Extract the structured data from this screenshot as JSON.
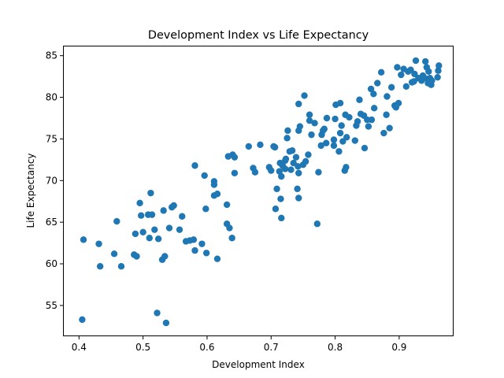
{
  "chart_data": {
    "type": "scatter",
    "title": "Development Index vs Life Expectancy",
    "xlabel": "Development Index",
    "ylabel": "Life Expectancy",
    "xlim": [
      0.375,
      0.985
    ],
    "ylim": [
      51.3,
      86.2
    ],
    "xticks": [
      0.4,
      0.5,
      0.6,
      0.7,
      0.8,
      0.9
    ],
    "xtick_labels": [
      "0.4",
      "0.5",
      "0.6",
      "0.7",
      "0.8",
      "0.9"
    ],
    "yticks": [
      55,
      60,
      65,
      70,
      75,
      80,
      85
    ],
    "ytick_labels": [
      "55",
      "60",
      "65",
      "70",
      "75",
      "80",
      "85"
    ],
    "grid": false,
    "color": "#1f77b4",
    "series": [
      {
        "points": [
          [
            0.405,
            53.3
          ],
          [
            0.407,
            62.9
          ],
          [
            0.431,
            62.4
          ],
          [
            0.433,
            59.7
          ],
          [
            0.455,
            61.2
          ],
          [
            0.459,
            65.1
          ],
          [
            0.466,
            59.7
          ],
          [
            0.486,
            61.1
          ],
          [
            0.488,
            63.6
          ],
          [
            0.49,
            60.9
          ],
          [
            0.495,
            67.3
          ],
          [
            0.497,
            65.8
          ],
          [
            0.5,
            63.8
          ],
          [
            0.508,
            65.9
          ],
          [
            0.51,
            63.1
          ],
          [
            0.512,
            68.5
          ],
          [
            0.514,
            65.9
          ],
          [
            0.518,
            64.1
          ],
          [
            0.522,
            54.1
          ],
          [
            0.524,
            63.0
          ],
          [
            0.53,
            60.5
          ],
          [
            0.532,
            66.4
          ],
          [
            0.534,
            60.9
          ],
          [
            0.536,
            52.9
          ],
          [
            0.541,
            64.3
          ],
          [
            0.545,
            66.8
          ],
          [
            0.548,
            67.0
          ],
          [
            0.557,
            64.1
          ],
          [
            0.561,
            65.7
          ],
          [
            0.567,
            62.7
          ],
          [
            0.573,
            62.8
          ],
          [
            0.579,
            62.9
          ],
          [
            0.581,
            61.6
          ],
          [
            0.581,
            71.8
          ],
          [
            0.592,
            62.4
          ],
          [
            0.596,
            70.6
          ],
          [
            0.598,
            66.6
          ],
          [
            0.599,
            61.3
          ],
          [
            0.611,
            69.9
          ],
          [
            0.611,
            69.5
          ],
          [
            0.611,
            68.2
          ],
          [
            0.616,
            68.4
          ],
          [
            0.616,
            60.6
          ],
          [
            0.631,
            64.8
          ],
          [
            0.631,
            67.1
          ],
          [
            0.633,
            72.9
          ],
          [
            0.635,
            64.3
          ],
          [
            0.639,
            63.1
          ],
          [
            0.64,
            73.1
          ],
          [
            0.643,
            72.8
          ],
          [
            0.643,
            70.9
          ],
          [
            0.665,
            74.1
          ],
          [
            0.672,
            71.5
          ],
          [
            0.675,
            71.0
          ],
          [
            0.683,
            74.3
          ],
          [
            0.697,
            71.6
          ],
          [
            0.7,
            71.2
          ],
          [
            0.704,
            74.1
          ],
          [
            0.706,
            74.0
          ],
          [
            0.707,
            66.6
          ],
          [
            0.709,
            69.0
          ],
          [
            0.713,
            71.1
          ],
          [
            0.714,
            72.1
          ],
          [
            0.715,
            67.8
          ],
          [
            0.716,
            65.5
          ],
          [
            0.716,
            70.5
          ],
          [
            0.718,
            71.8
          ],
          [
            0.722,
            72.4
          ],
          [
            0.722,
            71.4
          ],
          [
            0.723,
            72.6
          ],
          [
            0.725,
            75.1
          ],
          [
            0.726,
            76.0
          ],
          [
            0.729,
            73.5
          ],
          [
            0.731,
            71.3
          ],
          [
            0.733,
            73.6
          ],
          [
            0.735,
            72.1
          ],
          [
            0.739,
            72.8
          ],
          [
            0.741,
            69.0
          ],
          [
            0.742,
            71.7
          ],
          [
            0.743,
            67.9
          ],
          [
            0.743,
            79.2
          ],
          [
            0.743,
            76.0
          ],
          [
            0.743,
            70.9
          ],
          [
            0.745,
            76.5
          ],
          [
            0.75,
            71.9
          ],
          [
            0.752,
            80.2
          ],
          [
            0.754,
            72.3
          ],
          [
            0.758,
            73.1
          ],
          [
            0.76,
            77.2
          ],
          [
            0.76,
            77.9
          ],
          [
            0.763,
            75.5
          ],
          [
            0.768,
            76.9
          ],
          [
            0.772,
            64.8
          ],
          [
            0.774,
            71.0
          ],
          [
            0.778,
            74.2
          ],
          [
            0.779,
            75.5
          ],
          [
            0.781,
            76.0
          ],
          [
            0.783,
            76.2
          ],
          [
            0.786,
            74.5
          ],
          [
            0.787,
            77.5
          ],
          [
            0.798,
            74.9
          ],
          [
            0.798,
            74.2
          ],
          [
            0.8,
            77.4
          ],
          [
            0.801,
            79.1
          ],
          [
            0.806,
            73.5
          ],
          [
            0.808,
            75.7
          ],
          [
            0.808,
            79.3
          ],
          [
            0.81,
            76.6
          ],
          [
            0.812,
            74.7
          ],
          [
            0.815,
            71.2
          ],
          [
            0.816,
            77.9
          ],
          [
            0.817,
            71.6
          ],
          [
            0.818,
            75.2
          ],
          [
            0.822,
            77.6
          ],
          [
            0.831,
            74.8
          ],
          [
            0.833,
            76.6
          ],
          [
            0.835,
            77.1
          ],
          [
            0.838,
            79.7
          ],
          [
            0.84,
            78.0
          ],
          [
            0.845,
            77.8
          ],
          [
            0.846,
            73.9
          ],
          [
            0.85,
            77.3
          ],
          [
            0.852,
            76.5
          ],
          [
            0.856,
            81.0
          ],
          [
            0.857,
            77.3
          ],
          [
            0.86,
            80.4
          ],
          [
            0.861,
            78.7
          ],
          [
            0.866,
            81.7
          ],
          [
            0.872,
            83.0
          ],
          [
            0.876,
            75.7
          ],
          [
            0.88,
            77.9
          ],
          [
            0.881,
            80.1
          ],
          [
            0.885,
            76.3
          ],
          [
            0.888,
            81.2
          ],
          [
            0.893,
            79.0
          ],
          [
            0.895,
            78.8
          ],
          [
            0.897,
            83.6
          ],
          [
            0.899,
            79.3
          ],
          [
            0.903,
            82.7
          ],
          [
            0.907,
            83.4
          ],
          [
            0.911,
            81.3
          ],
          [
            0.914,
            83.1
          ],
          [
            0.918,
            83.3
          ],
          [
            0.92,
            81.8
          ],
          [
            0.923,
            81.9
          ],
          [
            0.924,
            82.8
          ],
          [
            0.926,
            84.4
          ],
          [
            0.93,
            82.3
          ],
          [
            0.935,
            82.0
          ],
          [
            0.937,
            82.6
          ],
          [
            0.94,
            82.3
          ],
          [
            0.941,
            84.3
          ],
          [
            0.943,
            83.6
          ],
          [
            0.945,
            81.7
          ],
          [
            0.946,
            83.1
          ],
          [
            0.948,
            82.3
          ],
          [
            0.95,
            81.5
          ],
          [
            0.951,
            82.0
          ],
          [
            0.96,
            82.4
          ],
          [
            0.961,
            83.2
          ],
          [
            0.962,
            83.8
          ]
        ]
      }
    ]
  }
}
